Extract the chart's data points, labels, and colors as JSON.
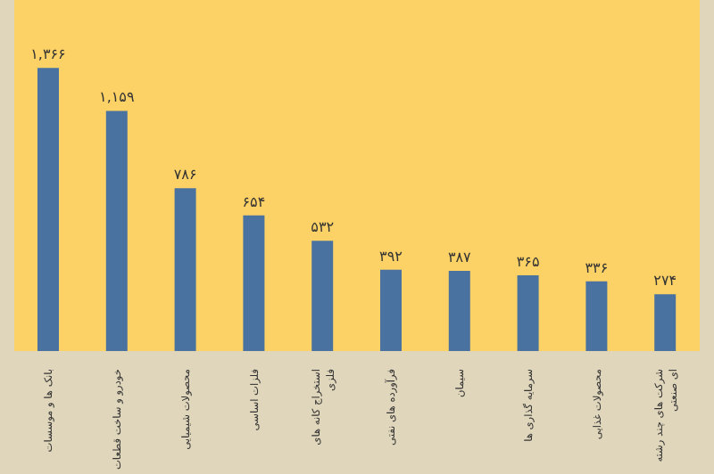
{
  "chart_data": {
    "type": "bar",
    "categories": [
      "بانک ها و موسسات",
      "خودرو و ساخت قطعات",
      "محصولات شیمیایی",
      "فلزات اساسی",
      "استخراج کانه های فلزی",
      "فرآورده های نفتی",
      "سیمان",
      "سرمایه گذاری ها",
      "محصولات غذایی",
      "شرکت های چند رشته ای صنعتی"
    ],
    "values": [
      1366,
      1159,
      786,
      654,
      532,
      392,
      387,
      365,
      336,
      274
    ],
    "value_labels": [
      "۱,۳۶۶",
      "۱,۱۵۹",
      "۷۸۶",
      "۶۵۴",
      "۵۳۲",
      "۳۹۲",
      "۳۸۷",
      "۳۶۵",
      "۳۳۶",
      "۲۷۴"
    ],
    "color": "#4a72a0"
  }
}
